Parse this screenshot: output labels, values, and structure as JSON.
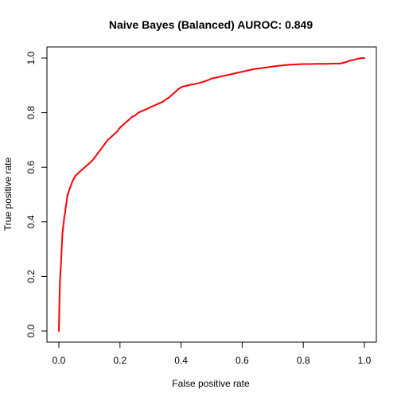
{
  "chart_data": {
    "type": "line",
    "title": "Naive Bayes (Balanced) AUROC: 0.849",
    "xlabel": "False positive rate",
    "ylabel": "True positive rate",
    "xlim": [
      0,
      1
    ],
    "ylim": [
      0,
      1
    ],
    "x_ticks": [
      "0.0",
      "0.2",
      "0.4",
      "0.6",
      "0.8",
      "1.0"
    ],
    "y_ticks": [
      "0.0",
      "0.2",
      "0.4",
      "0.6",
      "0.8",
      "1.0"
    ],
    "grid": false,
    "legend": "none",
    "colors": {
      "line": "#ff0000",
      "axis": "#000000",
      "background": "#ffffff"
    },
    "series": [
      {
        "x": [
          0.0,
          0.002,
          0.004,
          0.006,
          0.008,
          0.01,
          0.012,
          0.015,
          0.018,
          0.02,
          0.022,
          0.025,
          0.028,
          0.03,
          0.032,
          0.035,
          0.04,
          0.045,
          0.05,
          0.055,
          0.06,
          0.07,
          0.08,
          0.09,
          0.1,
          0.11,
          0.12,
          0.13,
          0.14,
          0.15,
          0.16,
          0.17,
          0.18,
          0.19,
          0.2,
          0.21,
          0.22,
          0.23,
          0.24,
          0.25,
          0.26,
          0.27,
          0.28,
          0.29,
          0.3,
          0.31,
          0.32,
          0.33,
          0.34,
          0.35,
          0.36,
          0.37,
          0.38,
          0.39,
          0.4,
          0.41,
          0.42,
          0.43,
          0.45,
          0.47,
          0.49,
          0.5,
          0.52,
          0.54,
          0.56,
          0.58,
          0.6,
          0.62,
          0.64,
          0.66,
          0.68,
          0.7,
          0.72,
          0.74,
          0.76,
          0.78,
          0.8,
          0.82,
          0.84,
          0.86,
          0.88,
          0.9,
          0.92,
          0.94,
          0.95,
          0.96,
          0.97,
          0.98,
          0.99,
          1.0
        ],
        "y": [
          0.0,
          0.12,
          0.19,
          0.23,
          0.27,
          0.32,
          0.36,
          0.39,
          0.42,
          0.43,
          0.45,
          0.47,
          0.5,
          0.5,
          0.51,
          0.52,
          0.535,
          0.55,
          0.56,
          0.57,
          0.575,
          0.585,
          0.595,
          0.605,
          0.615,
          0.625,
          0.64,
          0.655,
          0.67,
          0.685,
          0.7,
          0.71,
          0.72,
          0.73,
          0.745,
          0.755,
          0.765,
          0.775,
          0.785,
          0.79,
          0.8,
          0.805,
          0.81,
          0.815,
          0.82,
          0.825,
          0.83,
          0.835,
          0.84,
          0.848,
          0.855,
          0.865,
          0.875,
          0.885,
          0.893,
          0.897,
          0.899,
          0.902,
          0.906,
          0.912,
          0.92,
          0.925,
          0.93,
          0.935,
          0.94,
          0.945,
          0.95,
          0.955,
          0.96,
          0.963,
          0.966,
          0.969,
          0.972,
          0.974,
          0.976,
          0.977,
          0.978,
          0.978,
          0.979,
          0.979,
          0.979,
          0.98,
          0.98,
          0.985,
          0.99,
          0.992,
          0.995,
          0.998,
          1.0,
          1.0
        ]
      }
    ]
  }
}
